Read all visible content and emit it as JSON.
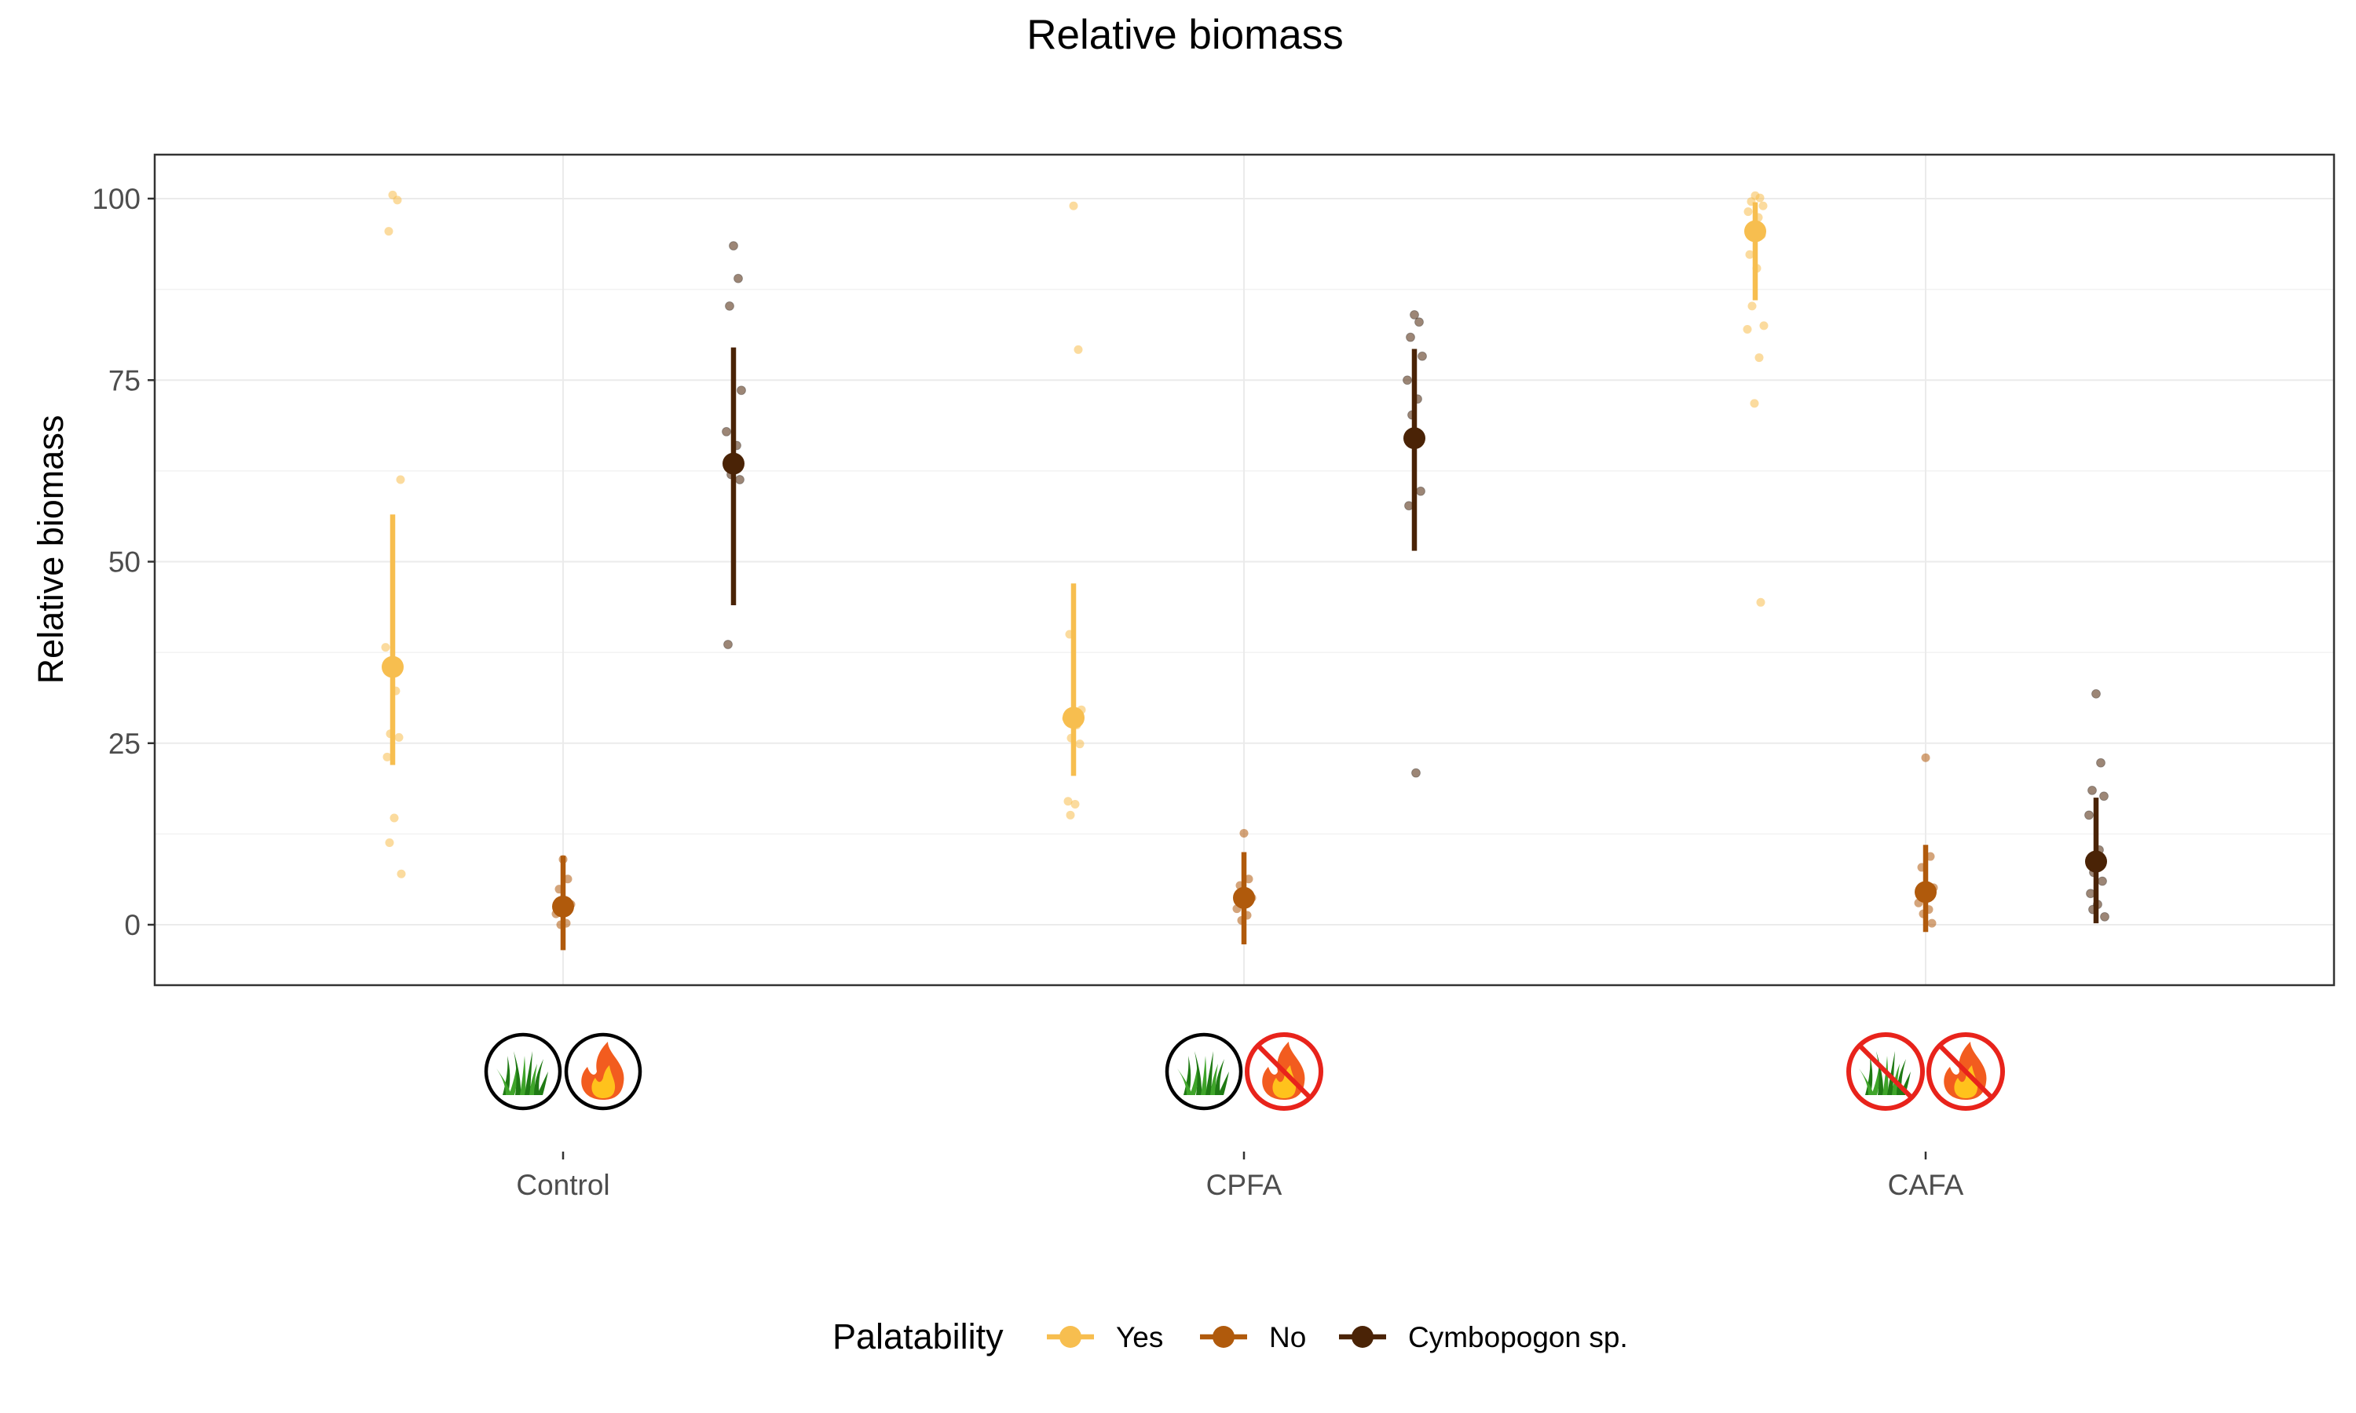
{
  "chart_data": {
    "type": "scatter",
    "title": "Relative biomass",
    "ylabel": "Relative biomass",
    "xlabel": "",
    "categories": [
      "Control",
      "CPFA",
      "CAFA"
    ],
    "yticks": [
      0,
      25,
      50,
      75,
      100
    ],
    "ylim": [
      -8.5,
      105.5
    ],
    "grid": true,
    "legend": {
      "title": "Palatability",
      "position": "bottom"
    },
    "series": [
      {
        "name": "Yes",
        "color": "#F7BE4F",
        "summary": [
          {
            "category": "Control",
            "mean": 35.5,
            "lower": 22,
            "upper": 56.5
          },
          {
            "category": "CPFA",
            "mean": 28.5,
            "lower": 20.5,
            "upper": 47
          },
          {
            "category": "CAFA",
            "mean": 95.5,
            "lower": 86,
            "upper": 99.5
          }
        ],
        "points": [
          {
            "category": "Control",
            "values": [
              100.5,
              99.8,
              95.5,
              61.3,
              38.2,
              32.2,
              26.3,
              25.8,
              23.1,
              14.7,
              11.3,
              7.0
            ]
          },
          {
            "category": "CPFA",
            "values": [
              99.0,
              79.2,
              40.0,
              29.6,
              28.4,
              27.5,
              25.7,
              24.9,
              17.0,
              16.6,
              15.1
            ]
          },
          {
            "category": "CAFA",
            "values": [
              100.4,
              100.1,
              99.6,
              99.0,
              98.2,
              97.4,
              95.8,
              95.0,
              92.3,
              90.4,
              85.2,
              82.5,
              82.0,
              78.1,
              71.8,
              44.4
            ]
          }
        ]
      },
      {
        "name": "No",
        "color": "#B05A0C",
        "summary": [
          {
            "category": "Control",
            "mean": 2.5,
            "lower": -3.5,
            "upper": 9.5
          },
          {
            "category": "CPFA",
            "mean": 3.7,
            "lower": -2.7,
            "upper": 10.0
          },
          {
            "category": "CAFA",
            "mean": 4.5,
            "lower": -1.0,
            "upper": 11.0
          }
        ],
        "points": [
          {
            "category": "Control",
            "values": [
              9.0,
              6.3,
              4.9,
              2.8,
              1.5,
              0.2,
              0.0
            ]
          },
          {
            "category": "CPFA",
            "values": [
              12.6,
              6.3,
              5.4,
              3.7,
              2.2,
              1.3,
              0.6
            ]
          },
          {
            "category": "CAFA",
            "values": [
              23.0,
              9.4,
              7.9,
              5.1,
              3.0,
              2.1,
              1.5,
              0.2
            ]
          }
        ]
      },
      {
        "name": "Cymbopogon sp.",
        "color": "#4A2306",
        "summary": [
          {
            "category": "Control",
            "mean": 63.5,
            "lower": 44,
            "upper": 79.5
          },
          {
            "category": "CPFA",
            "mean": 67,
            "lower": 51.5,
            "upper": 79.3
          },
          {
            "category": "CAFA",
            "mean": 8.7,
            "lower": 0.2,
            "upper": 17.5
          }
        ],
        "points": [
          {
            "category": "Control",
            "values": [
              93.5,
              89.0,
              85.2,
              73.6,
              67.9,
              66.0,
              62.0,
              61.3,
              38.6
            ]
          },
          {
            "category": "CPFA",
            "values": [
              84.0,
              83.0,
              80.9,
              78.3,
              75.0,
              72.4,
              70.2,
              59.7,
              57.7,
              20.9
            ]
          },
          {
            "category": "CAFA",
            "values": [
              31.8,
              22.3,
              18.5,
              17.7,
              15.1,
              10.3,
              7.2,
              6.0,
              4.3,
              2.8,
              2.1,
              1.1
            ]
          }
        ]
      }
    ],
    "treatment_icons": [
      {
        "category": "Control",
        "icons": [
          {
            "name": "grass-icon",
            "crossed": false
          },
          {
            "name": "fire-icon",
            "crossed": false
          }
        ]
      },
      {
        "category": "CPFA",
        "icons": [
          {
            "name": "grass-icon",
            "crossed": false
          },
          {
            "name": "fire-icon",
            "crossed": true
          }
        ]
      },
      {
        "category": "CAFA",
        "icons": [
          {
            "name": "grass-icon",
            "crossed": true
          },
          {
            "name": "fire-icon",
            "crossed": true
          }
        ]
      }
    ]
  }
}
